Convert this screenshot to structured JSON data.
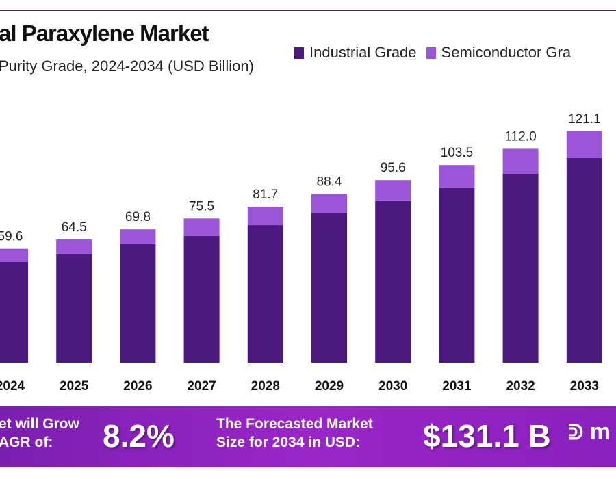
{
  "header": {
    "title": "al Paraxylene Market",
    "subtitle": "Purity Grade, 2024-2034 (USD Billion)"
  },
  "legend": [
    {
      "label": "Industrial Grade",
      "color": "#4b1a7e"
    },
    {
      "label": "Semiconductor Gra",
      "color": "#9b55d8"
    }
  ],
  "chart_data": {
    "type": "bar",
    "stacked": true,
    "title": "al Paraxylene Market",
    "subtitle": "Purity Grade, 2024-2034 (USD Billion)",
    "categories": [
      "2024",
      "2025",
      "2026",
      "2027",
      "2028",
      "2029",
      "2030",
      "2031",
      "2032",
      "2033"
    ],
    "totals": [
      "59.6",
      "64.5",
      "69.8",
      "75.5",
      "81.7",
      "88.4",
      "95.6",
      "103.5",
      "112.0",
      "121.1"
    ],
    "series": [
      {
        "name": "Industrial Grade",
        "color": "#4b1a7e",
        "values": [
          52.7,
          57.0,
          62.0,
          66.3,
          72.0,
          78.1,
          84.6,
          91.4,
          98.9,
          107.2
        ]
      },
      {
        "name": "Semiconductor Gra",
        "color": "#9b55d8",
        "values": [
          6.9,
          7.5,
          7.8,
          9.2,
          9.7,
          10.3,
          11.0,
          12.1,
          13.1,
          13.9
        ]
      }
    ],
    "ylim": [
      0,
      121.1
    ],
    "grid": false,
    "legend_position": "top-right"
  },
  "banner": {
    "cagr_text_1": "et will Grow",
    "cagr_text_2": "AGR of:",
    "cagr_value": "8.2%",
    "forecast_text_1": "The Forecasted Market",
    "forecast_text_2": "Size for 2034 in USD:",
    "forecast_value": "$131.1 B",
    "logo_text": "m"
  }
}
